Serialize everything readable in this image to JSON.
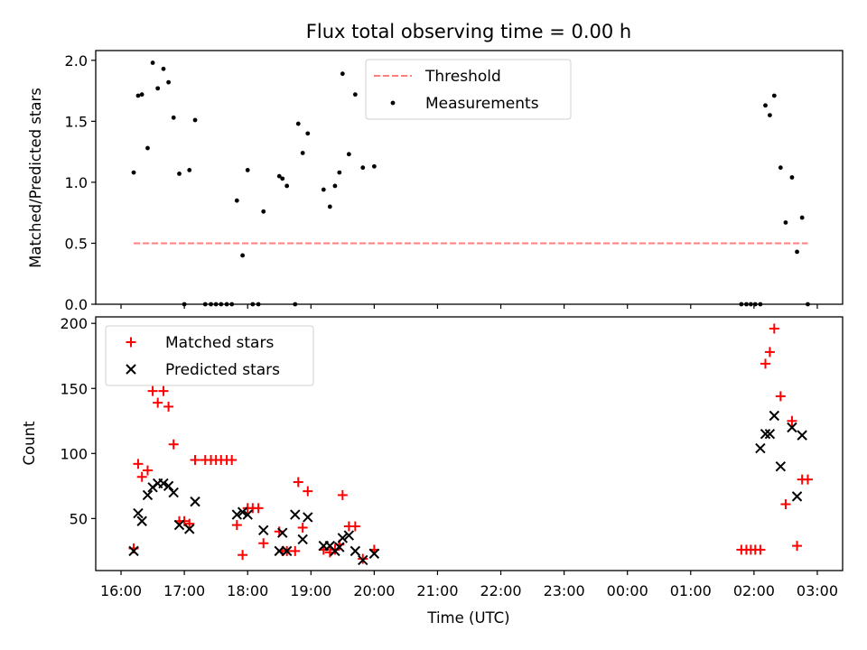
{
  "chart_data": [
    {
      "type": "scatter",
      "title": "Flux total observing time = 0.00 h",
      "ylabel": "Matched/Predicted stars",
      "xlabel": "",
      "ylim": [
        0,
        2.08
      ],
      "yticks": [
        0.0,
        0.5,
        1.0,
        1.5,
        2.0
      ],
      "ytick_labels": [
        "0.0",
        "0.5",
        "1.0",
        "1.5",
        "2.0"
      ],
      "legend": {
        "position": "top-center",
        "threshold_label": "Threshold",
        "measurements_label": "Measurements"
      },
      "threshold": {
        "value": 0.5,
        "x_start": 16.2,
        "x_end": 26.85,
        "color": "#ff7f7f"
      },
      "series": [
        {
          "name": "Measurements",
          "color": "#000000",
          "points": [
            [
              16.2,
              1.08
            ],
            [
              16.27,
              1.71
            ],
            [
              16.33,
              1.72
            ],
            [
              16.42,
              1.28
            ],
            [
              16.5,
              1.98
            ],
            [
              16.58,
              1.77
            ],
            [
              16.67,
              1.93
            ],
            [
              16.75,
              1.82
            ],
            [
              16.83,
              1.53
            ],
            [
              16.92,
              1.07
            ],
            [
              17.0,
              0.0
            ],
            [
              17.08,
              1.1
            ],
            [
              17.17,
              1.51
            ],
            [
              17.33,
              0.0
            ],
            [
              17.42,
              0.0
            ],
            [
              17.5,
              0.0
            ],
            [
              17.58,
              0.0
            ],
            [
              17.67,
              0.0
            ],
            [
              17.75,
              0.0
            ],
            [
              17.83,
              0.85
            ],
            [
              17.92,
              0.4
            ],
            [
              18.0,
              1.1
            ],
            [
              18.08,
              0.0
            ],
            [
              18.17,
              0.0
            ],
            [
              18.25,
              0.76
            ],
            [
              18.5,
              1.05
            ],
            [
              18.55,
              1.03
            ],
            [
              18.62,
              0.97
            ],
            [
              18.75,
              0.0
            ],
            [
              18.8,
              1.48
            ],
            [
              18.87,
              1.24
            ],
            [
              18.95,
              1.4
            ],
            [
              19.2,
              0.94
            ],
            [
              19.3,
              0.8
            ],
            [
              19.38,
              0.97
            ],
            [
              19.45,
              1.08
            ],
            [
              19.5,
              1.89
            ],
            [
              19.6,
              1.23
            ],
            [
              19.7,
              1.72
            ],
            [
              19.82,
              1.12
            ],
            [
              20.0,
              1.13
            ],
            [
              25.8,
              0.0
            ],
            [
              25.88,
              0.0
            ],
            [
              25.95,
              0.0
            ],
            [
              26.02,
              0.0
            ],
            [
              26.1,
              0.0
            ],
            [
              26.18,
              1.63
            ],
            [
              26.25,
              1.55
            ],
            [
              26.32,
              1.71
            ],
            [
              26.42,
              1.12
            ],
            [
              26.5,
              0.67
            ],
            [
              26.6,
              1.04
            ],
            [
              26.68,
              0.43
            ],
            [
              26.76,
              0.71
            ],
            [
              26.85,
              0.0
            ]
          ]
        }
      ]
    },
    {
      "type": "scatter",
      "title": "",
      "xlabel": "Time (UTC)",
      "ylabel": "Count",
      "ylim": [
        10,
        205
      ],
      "yticks": [
        50,
        100,
        150,
        200
      ],
      "ytick_labels": [
        "50",
        "100",
        "150",
        "200"
      ],
      "xlim": [
        15.6,
        27.4
      ],
      "xticks": [
        16,
        17,
        18,
        19,
        20,
        21,
        22,
        23,
        24,
        25,
        26,
        27
      ],
      "xtick_labels": [
        "16:00",
        "17:00",
        "18:00",
        "19:00",
        "20:00",
        "21:00",
        "22:00",
        "23:00",
        "00:00",
        "01:00",
        "02:00",
        "03:00"
      ],
      "legend": {
        "position": "top-left"
      },
      "series": [
        {
          "name": "Matched stars",
          "marker": "+",
          "color": "#ff0000",
          "points": [
            [
              16.2,
              27
            ],
            [
              16.27,
              92
            ],
            [
              16.33,
              82
            ],
            [
              16.42,
              87
            ],
            [
              16.5,
              148
            ],
            [
              16.58,
              139
            ],
            [
              16.67,
              148
            ],
            [
              16.75,
              136
            ],
            [
              16.83,
              107
            ],
            [
              16.92,
              48
            ],
            [
              17.0,
              48
            ],
            [
              17.08,
              46
            ],
            [
              17.17,
              95
            ],
            [
              17.33,
              95
            ],
            [
              17.42,
              95
            ],
            [
              17.5,
              95
            ],
            [
              17.58,
              95
            ],
            [
              17.67,
              95
            ],
            [
              17.75,
              95
            ],
            [
              17.83,
              45
            ],
            [
              17.92,
              22
            ],
            [
              18.0,
              58
            ],
            [
              18.08,
              58
            ],
            [
              18.17,
              58
            ],
            [
              18.25,
              31
            ],
            [
              18.5,
              40
            ],
            [
              18.55,
              25
            ],
            [
              18.62,
              25
            ],
            [
              18.75,
              25
            ],
            [
              18.8,
              78
            ],
            [
              18.87,
              43
            ],
            [
              18.95,
              71
            ],
            [
              19.2,
              26
            ],
            [
              19.3,
              24
            ],
            [
              19.38,
              26
            ],
            [
              19.45,
              30
            ],
            [
              19.5,
              68
            ],
            [
              19.6,
              44
            ],
            [
              19.7,
              44
            ],
            [
              19.82,
              19
            ],
            [
              20.0,
              26
            ],
            [
              25.8,
              26
            ],
            [
              25.88,
              26
            ],
            [
              25.95,
              26
            ],
            [
              26.02,
              26
            ],
            [
              26.1,
              26
            ],
            [
              26.18,
              169
            ],
            [
              26.25,
              178
            ],
            [
              26.32,
              196
            ],
            [
              26.42,
              144
            ],
            [
              26.5,
              61
            ],
            [
              26.6,
              125
            ],
            [
              26.68,
              29
            ],
            [
              26.76,
              80
            ],
            [
              26.85,
              80
            ]
          ]
        },
        {
          "name": "Predicted stars",
          "marker": "x",
          "color": "#000000",
          "points": [
            [
              16.2,
              25
            ],
            [
              16.27,
              54
            ],
            [
              16.33,
              48
            ],
            [
              16.42,
              68
            ],
            [
              16.5,
              74
            ],
            [
              16.58,
              77
            ],
            [
              16.67,
              77
            ],
            [
              16.75,
              75
            ],
            [
              16.83,
              70
            ],
            [
              16.92,
              45
            ],
            [
              17.08,
              42
            ],
            [
              17.17,
              63
            ],
            [
              17.83,
              53
            ],
            [
              17.92,
              55
            ],
            [
              18.0,
              53
            ],
            [
              18.25,
              41
            ],
            [
              18.5,
              25
            ],
            [
              18.55,
              39
            ],
            [
              18.62,
              25
            ],
            [
              18.75,
              53
            ],
            [
              18.87,
              34
            ],
            [
              18.95,
              51
            ],
            [
              19.2,
              29
            ],
            [
              19.3,
              29
            ],
            [
              19.38,
              25
            ],
            [
              19.45,
              28
            ],
            [
              19.5,
              35
            ],
            [
              19.6,
              37
            ],
            [
              19.7,
              25
            ],
            [
              19.82,
              18
            ],
            [
              20.0,
              23
            ],
            [
              26.1,
              104
            ],
            [
              26.18,
              115
            ],
            [
              26.25,
              115
            ],
            [
              26.32,
              129
            ],
            [
              26.42,
              90
            ],
            [
              26.6,
              120
            ],
            [
              26.68,
              67
            ],
            [
              26.76,
              114
            ]
          ]
        }
      ]
    }
  ]
}
